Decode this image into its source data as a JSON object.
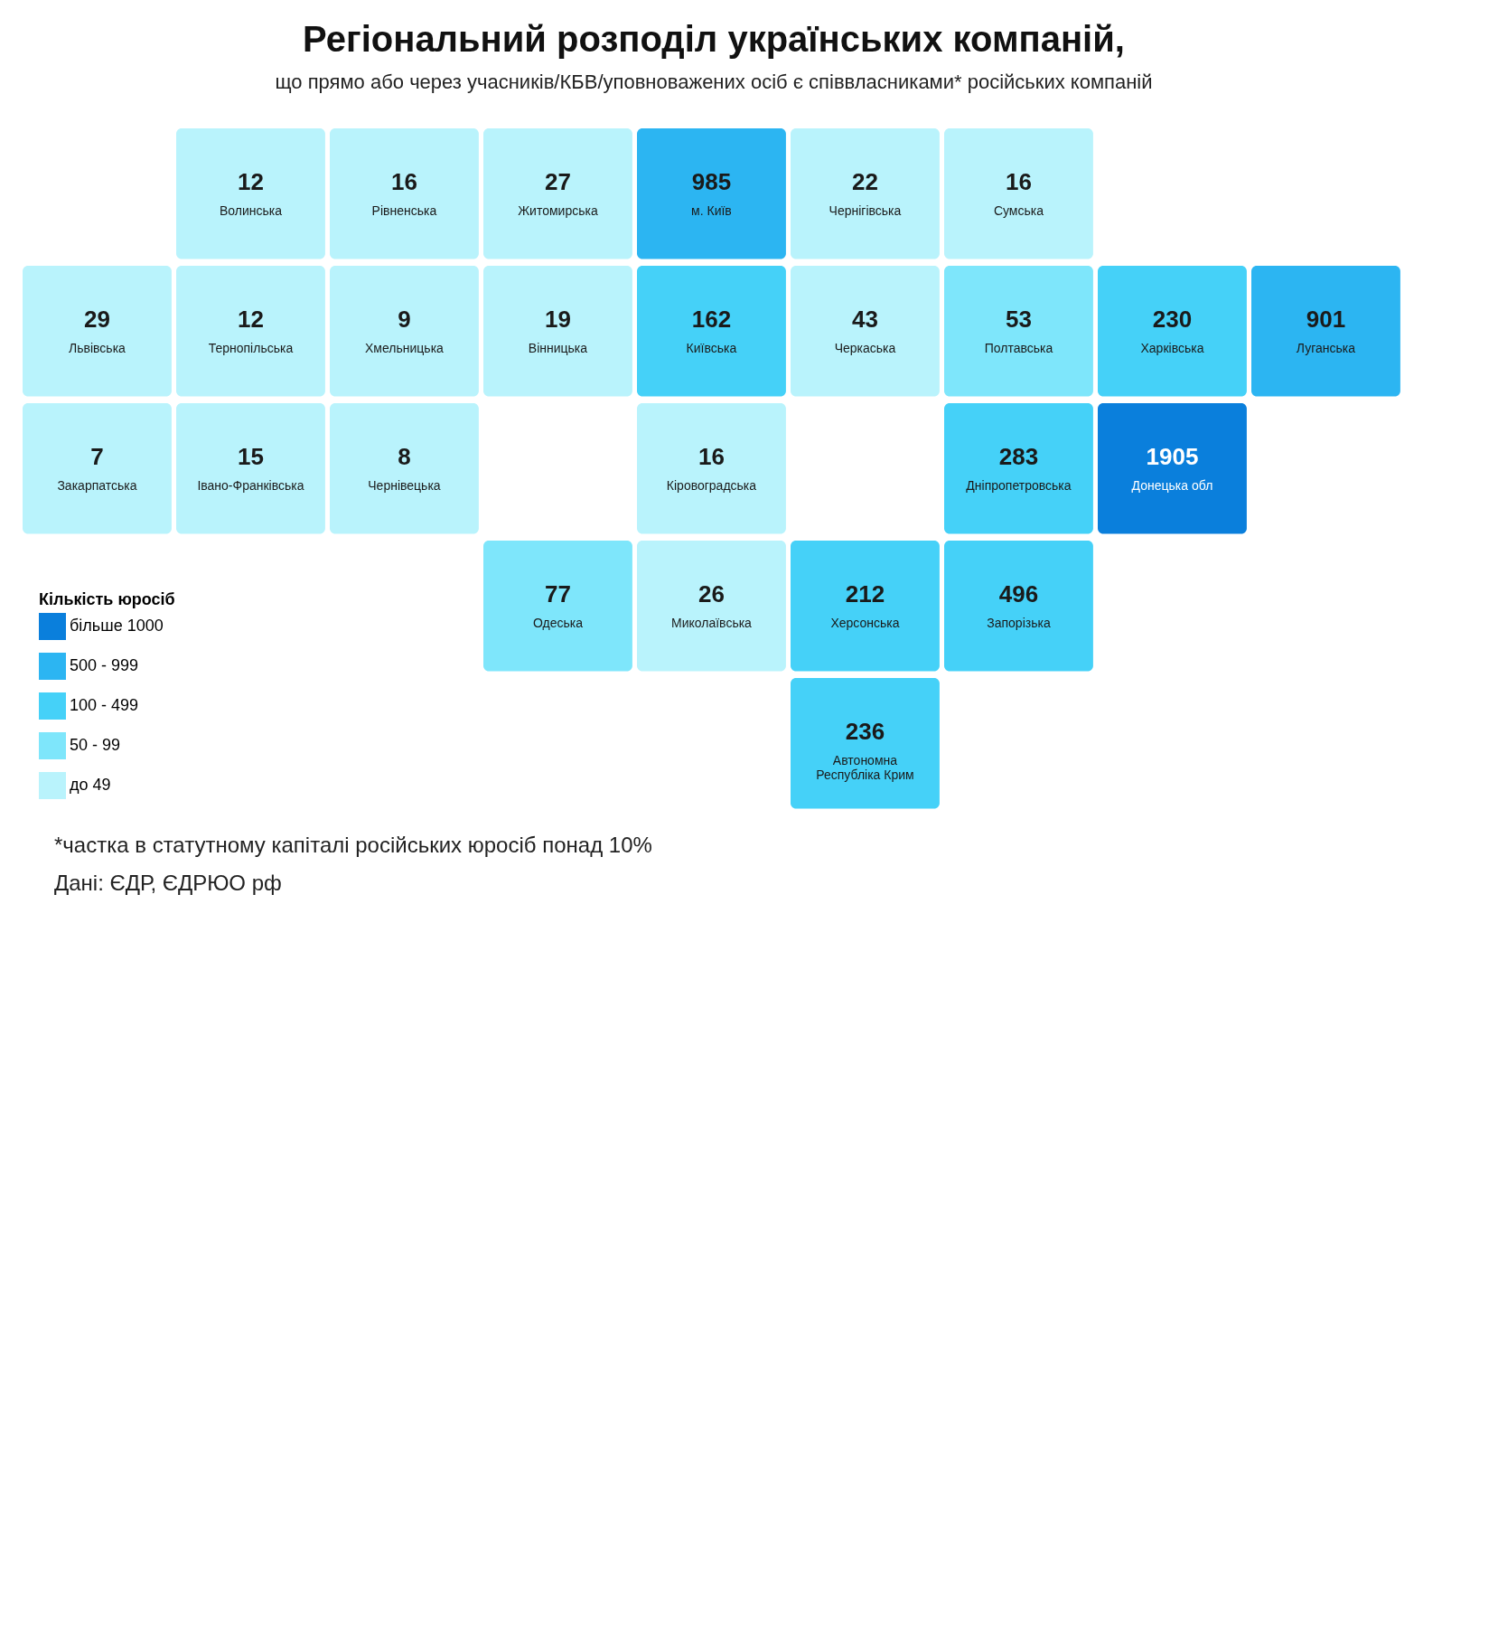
{
  "chart_data": {
    "type": "other",
    "title": "Регіональний розподіл українських компаній,",
    "subtitle": "що прямо або через учасників/КБВ/уповноважених осіб є співвласниками* російських компаній",
    "categories": [
      "Волинська",
      "Рівненська",
      "Житомирська",
      "м. Київ",
      "Чернігівська",
      "Сумська",
      "Львівська",
      "Тернопільська",
      "Хмельницька",
      "Вінницька",
      "Київська",
      "Черкаська",
      "Полтавська",
      "Харківська",
      "Луганська",
      "Закарпатська",
      "Івано-Франківська",
      "Чернівецька",
      "Кіровоградська",
      "Дніпропетровська",
      "Донецька обл",
      "Одеська",
      "Миколаївська",
      "Херсонська",
      "Запорізька",
      "Автономна Республіка Крим"
    ],
    "series": [
      {
        "name": "більше 1000",
        "color": "#0a7fdc",
        "values": [
          null,
          null,
          null,
          null,
          null,
          null,
          null,
          null,
          null,
          null,
          null,
          null,
          null,
          null,
          null,
          null,
          null,
          null,
          null,
          null,
          1905,
          null,
          null,
          null,
          null,
          null
        ]
      },
      {
        "name": "500 - 999",
        "color": "#2cb5f2",
        "values": [
          null,
          null,
          null,
          985,
          null,
          null,
          null,
          null,
          null,
          null,
          null,
          null,
          null,
          null,
          901,
          null,
          null,
          null,
          null,
          null,
          null,
          null,
          null,
          null,
          null,
          null
        ]
      },
      {
        "name": "100 - 499",
        "color": "#45d1f8",
        "values": [
          null,
          null,
          null,
          null,
          null,
          null,
          null,
          null,
          null,
          null,
          162,
          null,
          null,
          230,
          null,
          null,
          null,
          null,
          null,
          283,
          null,
          null,
          null,
          212,
          496,
          236
        ]
      },
      {
        "name": "50 - 99",
        "color": "#7ee6fb",
        "values": [
          null,
          null,
          null,
          null,
          null,
          null,
          null,
          null,
          null,
          null,
          null,
          null,
          53,
          null,
          null,
          null,
          null,
          null,
          null,
          null,
          null,
          77,
          null,
          null,
          null,
          null
        ]
      },
      {
        "name": "до 49",
        "color": "#b9f3fc",
        "values": [
          12,
          16,
          27,
          null,
          22,
          16,
          29,
          12,
          9,
          19,
          null,
          43,
          null,
          null,
          null,
          7,
          15,
          8,
          16,
          null,
          null,
          null,
          26,
          null,
          null,
          null
        ]
      }
    ],
    "legend_title": "Кількість юросіб",
    "legend": "bottom left",
    "data_labels": true,
    "annotations": [
      "*частка в статутному капіталі російських юросіб понад 10%",
      "Дані: ЄДР, ЄДРЮО рф"
    ]
  }
}
